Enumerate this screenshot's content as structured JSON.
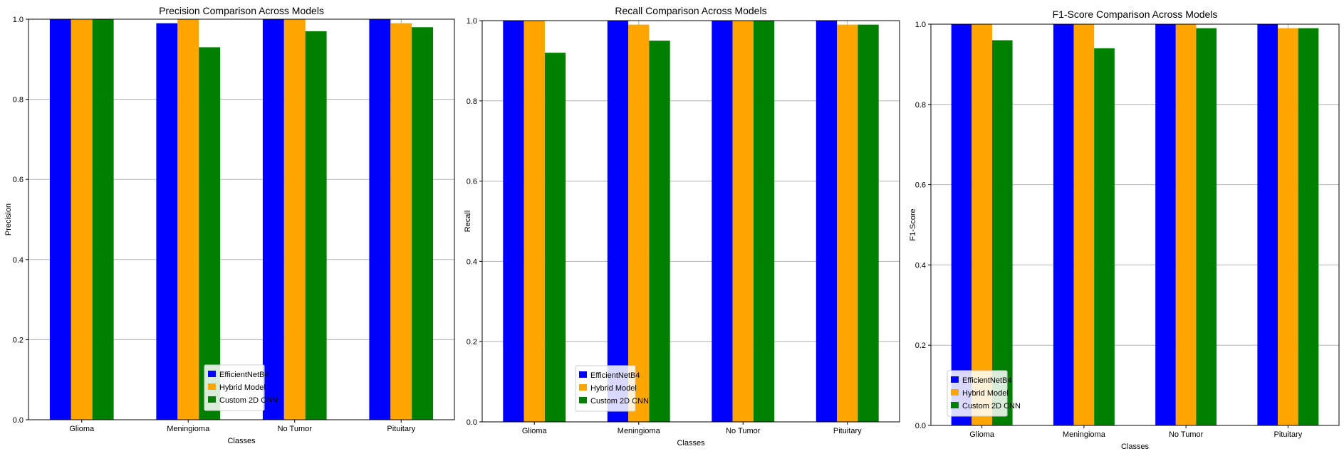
{
  "colors": {
    "EfficientNetB4": "#0000ff",
    "Hybrid Model": "#ffa500",
    "Custom 2D CNN": "#008000"
  },
  "chart_data": [
    {
      "type": "bar",
      "title": "Precision Comparison Across Models",
      "xlabel": "Classes",
      "ylabel": "Precision",
      "categories": [
        "Glioma",
        "Meningioma",
        "No Tumor",
        "Pituitary"
      ],
      "ylim": [
        0,
        1.0
      ],
      "yticks": [
        "0.0",
        "0.2",
        "0.4",
        "0.6",
        "0.8",
        "1.0"
      ],
      "grid": true,
      "legend_position": "bottom-center",
      "series": [
        {
          "name": "EfficientNetB4",
          "values": [
            1.0,
            0.99,
            1.0,
            1.0
          ]
        },
        {
          "name": "Hybrid Model",
          "values": [
            1.0,
            1.0,
            1.0,
            0.99
          ]
        },
        {
          "name": "Custom 2D CNN",
          "values": [
            1.0,
            0.93,
            0.97,
            0.98
          ]
        }
      ]
    },
    {
      "type": "bar",
      "title": "Recall Comparison Across Models",
      "xlabel": "Classes",
      "ylabel": "Recall",
      "categories": [
        "Glioma",
        "Meningioma",
        "No Tumor",
        "Pituitary"
      ],
      "ylim": [
        0,
        1.0
      ],
      "yticks": [
        "0.0",
        "0.2",
        "0.4",
        "0.6",
        "0.8",
        "1.0"
      ],
      "grid": true,
      "legend_position": "bottom-center",
      "series": [
        {
          "name": "EfficientNetB4",
          "values": [
            1.0,
            1.0,
            1.0,
            1.0
          ]
        },
        {
          "name": "Hybrid Model",
          "values": [
            1.0,
            0.99,
            1.0,
            0.99
          ]
        },
        {
          "name": "Custom 2D CNN",
          "values": [
            0.92,
            0.95,
            1.0,
            0.99
          ]
        }
      ]
    },
    {
      "type": "bar",
      "title": "F1-Score Comparison Across Models",
      "xlabel": "Classes",
      "ylabel": "F1-Score",
      "categories": [
        "Glioma",
        "Meningioma",
        "No Tumor",
        "Pituitary"
      ],
      "ylim": [
        0,
        1.0
      ],
      "yticks": [
        "0.0",
        "0.2",
        "0.4",
        "0.6",
        "0.8",
        "1.0"
      ],
      "grid": true,
      "legend_position": "bottom-center",
      "series": [
        {
          "name": "EfficientNetB4",
          "values": [
            1.0,
            1.0,
            1.0,
            1.0
          ]
        },
        {
          "name": "Hybrid Model",
          "values": [
            1.0,
            1.0,
            1.0,
            0.99
          ]
        },
        {
          "name": "Custom 2D CNN",
          "values": [
            0.96,
            0.94,
            0.99,
            0.99
          ]
        }
      ]
    }
  ]
}
